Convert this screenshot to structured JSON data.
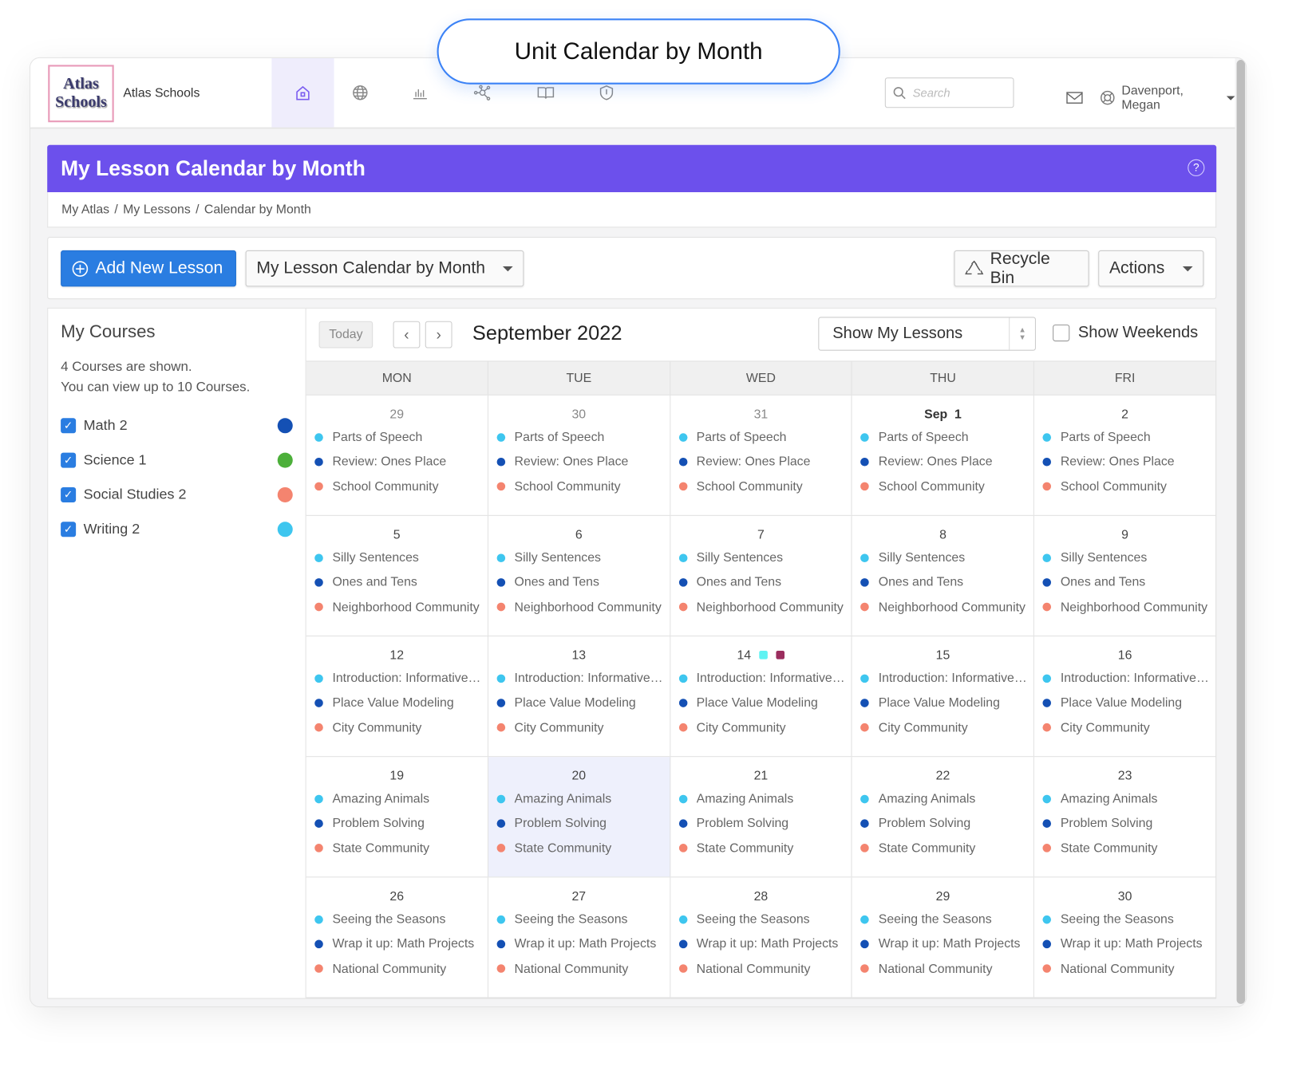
{
  "callout": {
    "title": "Unit Calendar by Month"
  },
  "header": {
    "logo_text": [
      "Atlas",
      "Schools"
    ],
    "org_name": "Atlas Schools",
    "nav": [
      "home-icon",
      "globe-icon",
      "chart-icon",
      "network-icon",
      "book-icon",
      "shield-icon"
    ],
    "active_nav": "home-icon",
    "search_placeholder": "Search",
    "user_name": "Davenport, Megan"
  },
  "page": {
    "title": "My Lesson Calendar by Month",
    "breadcrumbs": [
      "My Atlas",
      "My Lessons",
      "Calendar by Month"
    ],
    "accent": "#6c50ec"
  },
  "toolbar": {
    "add_label": "Add New Lesson",
    "view_select": "My Lesson Calendar by Month",
    "recycle_label": "Recycle Bin",
    "actions_label": "Actions"
  },
  "sidebar": {
    "title": "My Courses",
    "info_line1": "4 Courses are shown.",
    "info_line2": "You can view up to 10 Courses.",
    "courses": [
      {
        "name": "Math 2",
        "checked": true,
        "color": "#1450b4"
      },
      {
        "name": "Science 1",
        "checked": true,
        "color": "#4caf3a"
      },
      {
        "name": "Social Studies 2",
        "checked": true,
        "color": "#f4846f"
      },
      {
        "name": "Writing 2",
        "checked": true,
        "color": "#3ec6ef"
      }
    ]
  },
  "calendar": {
    "today_label": "Today",
    "month_label": "September 2022",
    "filter_select": "Show My Lessons",
    "weekends_label": "Show Weekends",
    "weekends_checked": false,
    "weekdays": [
      "MON",
      "TUE",
      "WED",
      "THU",
      "FRI"
    ],
    "lesson_colors": [
      "#3ec6ef",
      "#1450b4",
      "#f4846f"
    ],
    "weeks": [
      {
        "days": [
          {
            "label": "29",
            "outside": true
          },
          {
            "label": "30",
            "outside": true
          },
          {
            "label": "31",
            "outside": true
          },
          {
            "label": "Sep  1",
            "first": true
          },
          {
            "label": "2"
          }
        ],
        "lessons": [
          "Parts of Speech",
          "Review: Ones Place",
          "School Community"
        ]
      },
      {
        "days": [
          {
            "label": "5"
          },
          {
            "label": "6"
          },
          {
            "label": "7"
          },
          {
            "label": "8"
          },
          {
            "label": "9"
          }
        ],
        "lessons": [
          "Silly Sentences",
          "Ones and Tens",
          "Neighborhood Community"
        ]
      },
      {
        "days": [
          {
            "label": "12"
          },
          {
            "label": "13"
          },
          {
            "label": "14",
            "markers": [
              "#5ff3f3",
              "#9b2d5e"
            ]
          },
          {
            "label": "15"
          },
          {
            "label": "16"
          }
        ],
        "lessons": [
          "Introduction: Informative Writing",
          "Place Value Modeling",
          "City Community"
        ]
      },
      {
        "days": [
          {
            "label": "19"
          },
          {
            "label": "20",
            "today": true
          },
          {
            "label": "21"
          },
          {
            "label": "22"
          },
          {
            "label": "23"
          }
        ],
        "lessons": [
          "Amazing Animals",
          "Problem Solving",
          "State Community"
        ]
      },
      {
        "days": [
          {
            "label": "26"
          },
          {
            "label": "27"
          },
          {
            "label": "28"
          },
          {
            "label": "29"
          },
          {
            "label": "30"
          }
        ],
        "lessons": [
          "Seeing the Seasons",
          "Wrap it up: Math Projects",
          "National Community"
        ]
      }
    ]
  }
}
